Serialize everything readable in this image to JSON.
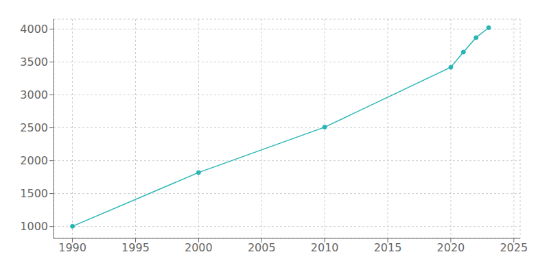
{
  "chart_data": {
    "type": "line",
    "x": [
      1990,
      2000,
      2010,
      2020,
      2021,
      2022,
      2023
    ],
    "values": [
      1004,
      1820,
      2510,
      3420,
      3650,
      3870,
      4020
    ],
    "color": "#2ab5b5",
    "marker": "circle",
    "xlim": [
      1988.5,
      2025.5
    ],
    "xticks": [
      1990,
      1995,
      2000,
      2005,
      2010,
      2015,
      2020,
      2025
    ],
    "ylim": [
      820,
      4150
    ],
    "yticks": [
      1000,
      1500,
      2000,
      2500,
      3000,
      3500,
      4000
    ],
    "grid": true
  }
}
